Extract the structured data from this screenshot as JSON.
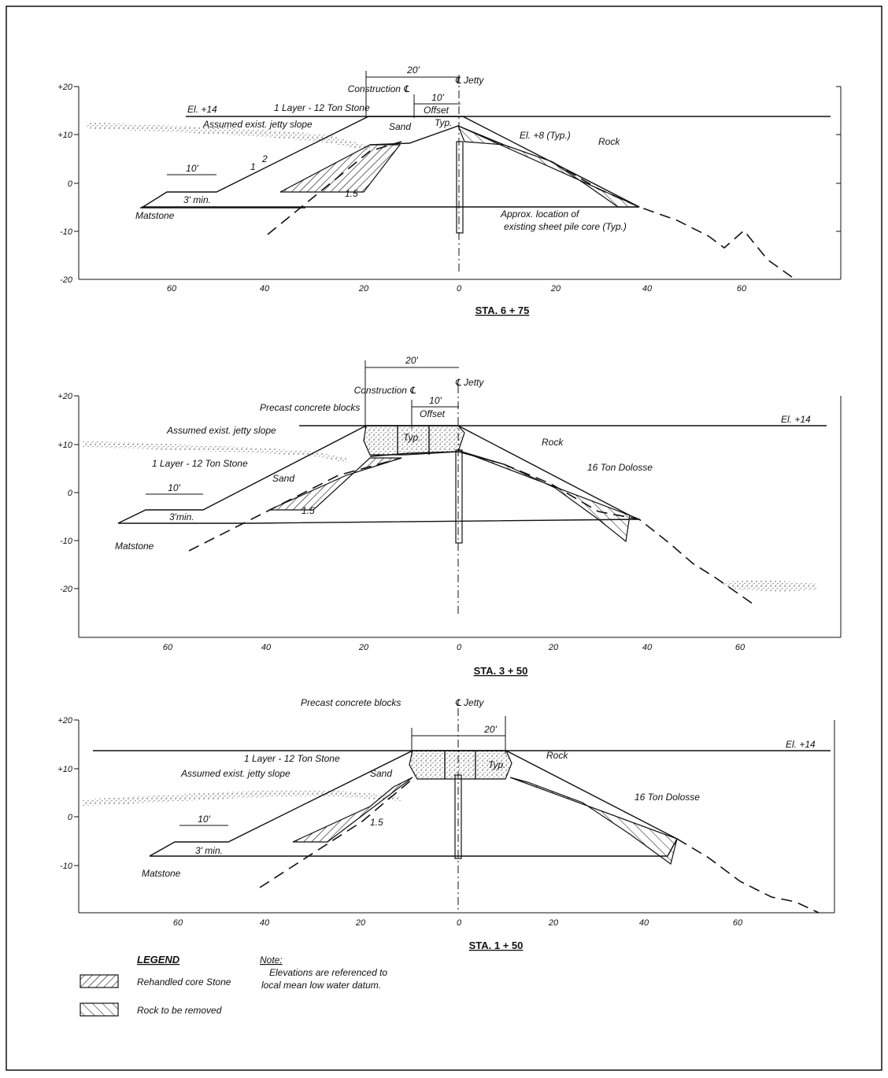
{
  "figure": {
    "legend": {
      "heading": "LEGEND",
      "items": [
        {
          "label": "Rehandled core Stone",
          "pattern": "hatch-forward"
        },
        {
          "label": "Rock to be removed",
          "pattern": "hatch-back"
        }
      ]
    },
    "note": {
      "heading": "Note:",
      "lines": [
        "Elevations are referenced to",
        "local mean low water datum."
      ]
    }
  },
  "sections": [
    {
      "title": "STA. 6 + 75",
      "y_ticks": [
        "+20",
        "+10",
        "0",
        "-10",
        "-20"
      ],
      "x_ticks": [
        "60",
        "40",
        "20",
        "0",
        "20",
        "40",
        "60"
      ],
      "labels": {
        "dim_20": "20'",
        "construction": "Construction ℄",
        "jetty": "℄ Jetty",
        "dim_10": "10'",
        "offset": "Offset",
        "el14": "El. +14",
        "layer": "1 Layer - 12 Ton Stone",
        "assumed": "Assumed exist. jetty slope",
        "sand": "Sand",
        "typ": "Typ.",
        "el8": "El. +8 (Typ.)",
        "rock": "Rock",
        "dim_10b": "10'",
        "min3": "3' min.",
        "matstone": "Matstone",
        "slope_2a": "2",
        "slope_1a": "1",
        "slope_15": "1.5",
        "sheetpile1": "Approx. location of",
        "sheetpile2": "existing sheet pile core (Typ.)"
      }
    },
    {
      "title": "STA. 3 + 50",
      "y_ticks": [
        "+20",
        "+10",
        "0",
        "-10",
        "-20"
      ],
      "x_ticks": [
        "60",
        "40",
        "20",
        "0",
        "20",
        "40",
        "60"
      ],
      "labels": {
        "dim_20": "20'",
        "construction": "Construction ℄",
        "jetty": "℄ Jetty",
        "precast": "Precast concrete blocks",
        "dim_10": "10'",
        "offset": "Offset",
        "el14": "El. +14",
        "assumed": "Assumed exist. jetty slope",
        "layer": "1 Layer - 12 Ton Stone",
        "sand": "Sand",
        "typ": "Typ.",
        "rock": "Rock",
        "dolosse": "16 Ton Dolosse",
        "dim_10b": "10'",
        "min3": "3'min.",
        "matstone": "Matstone",
        "slope_15": "1.5"
      }
    },
    {
      "title": "STA. 1 + 50",
      "y_ticks": [
        "+20",
        "+10",
        "0",
        "-10"
      ],
      "x_ticks": [
        "60",
        "40",
        "20",
        "0",
        "20",
        "40",
        "60"
      ],
      "labels": {
        "precast": "Precast concrete blocks",
        "jetty": "℄ Jetty",
        "dim_20": "20'",
        "el14": "El. +14",
        "layer": "1 Layer - 12 Ton Stone",
        "assumed": "Assumed exist. jetty slope",
        "sand": "Sand",
        "typ": "Typ.",
        "rock": "Rock",
        "dolosse": "16 Ton Dolosse",
        "dim_10b": "10'",
        "min3": "3' min.",
        "matstone": "Matstone",
        "slope_15": "1.5"
      }
    }
  ]
}
